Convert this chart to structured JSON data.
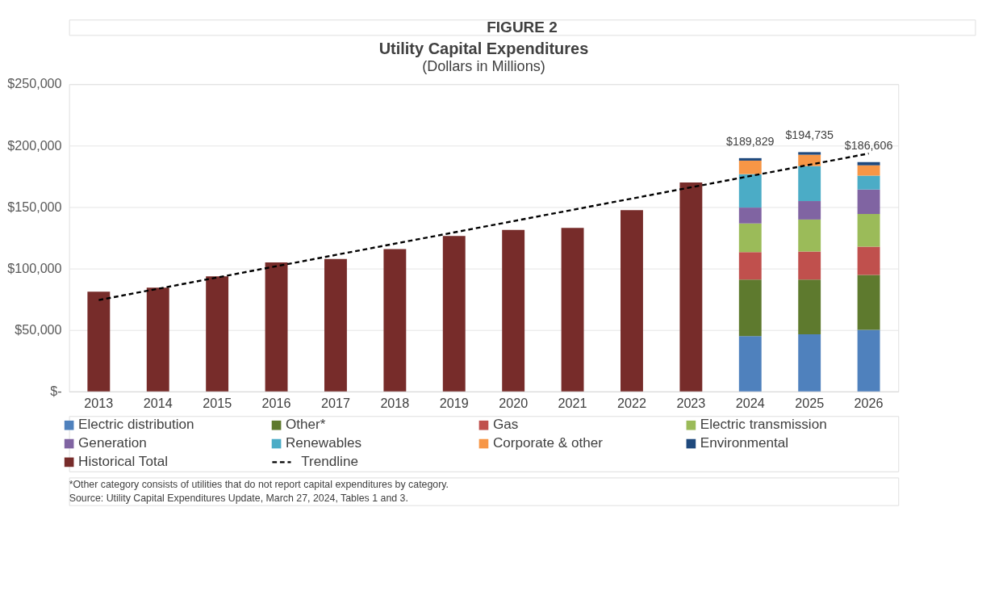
{
  "chart_data": {
    "type": "bar",
    "title": "Utility Capital Expenditures",
    "subtitle": "(Dollars in Millions)",
    "categories": [
      "2013",
      "2014",
      "2015",
      "2016",
      "2017",
      "2018",
      "2019",
      "2020",
      "2021",
      "2022",
      "2023",
      "2024",
      "2025",
      "2026"
    ],
    "stacked": true,
    "series": [
      {
        "name": "Electric distribution",
        "color": "#4f81bd",
        "values": [
          null,
          null,
          null,
          null,
          null,
          null,
          null,
          null,
          null,
          null,
          null,
          45000,
          46600,
          50100
        ]
      },
      {
        "name": "Other*",
        "color": "#5e7a2e",
        "values": [
          null,
          null,
          null,
          null,
          null,
          null,
          null,
          null,
          null,
          null,
          null,
          46100,
          44500,
          44700
        ]
      },
      {
        "name": "Gas",
        "color": "#c0504d",
        "values": [
          null,
          null,
          null,
          null,
          null,
          null,
          null,
          null,
          null,
          null,
          null,
          22200,
          22800,
          23000
        ]
      },
      {
        "name": "Electric transmission",
        "color": "#9bbb59",
        "values": [
          null,
          null,
          null,
          null,
          null,
          null,
          null,
          null,
          null,
          null,
          null,
          23400,
          26000,
          26600
        ]
      },
      {
        "name": "Generation",
        "color": "#8064a2",
        "values": [
          null,
          null,
          null,
          null,
          null,
          null,
          null,
          null,
          null,
          null,
          null,
          12900,
          15000,
          19900
        ]
      },
      {
        "name": "Renewables",
        "color": "#4bacc6",
        "values": [
          null,
          null,
          null,
          null,
          null,
          null,
          null,
          null,
          null,
          null,
          null,
          27200,
          28500,
          11300
        ]
      },
      {
        "name": "Corporate & other",
        "color": "#f79646",
        "values": [
          null,
          null,
          null,
          null,
          null,
          null,
          null,
          null,
          null,
          null,
          null,
          11000,
          9200,
          8400
        ]
      },
      {
        "name": "Environmental",
        "color": "#1f497d",
        "values": [
          null,
          null,
          null,
          null,
          null,
          null,
          null,
          null,
          null,
          null,
          null,
          2029,
          2135,
          2606
        ]
      },
      {
        "name": "Historical Total",
        "color": "#772c2a",
        "values": [
          81200,
          84500,
          93700,
          105000,
          107800,
          115800,
          126500,
          131500,
          133000,
          147500,
          170000,
          null,
          null,
          null
        ]
      },
      {
        "name": "Trendline",
        "type": "line",
        "color": "#000000",
        "line_style": "dashed",
        "values": [
          74400,
          null,
          null,
          null,
          null,
          null,
          null,
          null,
          null,
          null,
          null,
          null,
          null,
          193600
        ]
      }
    ],
    "totals": [
      null,
      null,
      null,
      null,
      null,
      null,
      null,
      null,
      null,
      null,
      null,
      "$189,829",
      "$194,735",
      "$186,606"
    ],
    "ylim": [
      0,
      250000
    ],
    "yticks": [
      {
        "value": 0,
        "label": "$-"
      },
      {
        "value": 50000,
        "label": "$50,000"
      },
      {
        "value": 100000,
        "label": "$100,000"
      },
      {
        "value": 150000,
        "label": "$150,000"
      },
      {
        "value": 200000,
        "label": "$200,000"
      },
      {
        "value": 250000,
        "label": "$250,000"
      }
    ],
    "grid": "y",
    "legend": "bottom",
    "annotations": [
      "FIGURE 2",
      "*Other category consists of utilities that do not report capital expenditures by category.",
      "Source: Utility Capital Expenditures Update, March 27, 2024, Tables 1 and 3."
    ]
  }
}
